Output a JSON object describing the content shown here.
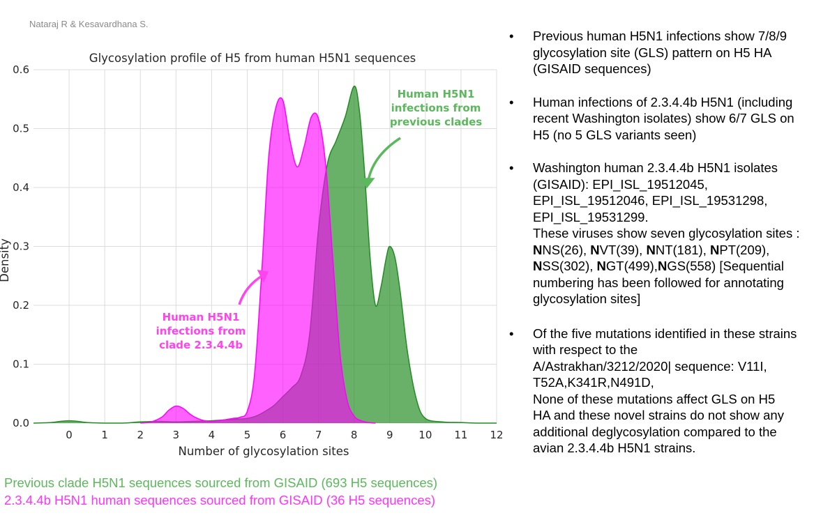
{
  "author": "Nataraj R & Kesavardhana S.",
  "chart_data": {
    "type": "area",
    "title": "Glycosylation profile of H5 from human H5N1 sequences",
    "xlabel": "Number of glycosylation sites",
    "ylabel": "Density",
    "xlim": [
      -1,
      12
    ],
    "ylim": [
      0,
      0.6
    ],
    "xticks": [
      "0",
      "1",
      "2",
      "3",
      "4",
      "5",
      "6",
      "7",
      "8",
      "9",
      "10",
      "11",
      "12"
    ],
    "yticks": [
      "0.0",
      "0.1",
      "0.2",
      "0.3",
      "0.4",
      "0.5",
      "0.6"
    ],
    "grid": true,
    "series": [
      {
        "color": "#228b22",
        "x": [
          -1.0,
          -0.5,
          -0.25,
          0,
          0.25,
          0.5,
          1,
          1.5,
          2,
          2.5,
          3,
          3.5,
          4,
          4.5,
          5,
          5.25,
          5.5,
          5.75,
          6,
          6.25,
          6.5,
          6.75,
          7,
          7.25,
          7.5,
          7.75,
          8,
          8.15,
          8.3,
          8.45,
          8.6,
          8.75,
          8.9,
          9,
          9.15,
          9.3,
          9.5,
          9.75,
          10,
          10.5,
          11,
          11.5,
          12
        ],
        "values": [
          0,
          0.001,
          0.003,
          0.004,
          0.003,
          0.001,
          0,
          0,
          0.002,
          0.003,
          0.002,
          0.003,
          0.004,
          0.006,
          0.008,
          0.012,
          0.02,
          0.03,
          0.045,
          0.06,
          0.08,
          0.15,
          0.33,
          0.44,
          0.48,
          0.52,
          0.572,
          0.53,
          0.42,
          0.28,
          0.2,
          0.23,
          0.28,
          0.3,
          0.28,
          0.22,
          0.12,
          0.04,
          0.008,
          0.002,
          0.001,
          0,
          0
        ]
      },
      {
        "color": "#ff00ff",
        "x": [
          2.0,
          2.3,
          2.6,
          2.8,
          3,
          3.2,
          3.4,
          3.6,
          3.8,
          4,
          4.2,
          4.4,
          4.6,
          4.8,
          5,
          5.2,
          5.4,
          5.6,
          5.8,
          6,
          6.2,
          6.4,
          6.6,
          6.8,
          7,
          7.2,
          7.4,
          7.6,
          7.8,
          8.0,
          8.2,
          8.4,
          8.6
        ],
        "values": [
          0,
          0.002,
          0.01,
          0.022,
          0.029,
          0.025,
          0.015,
          0.008,
          0.004,
          0.003,
          0.004,
          0.006,
          0.008,
          0.01,
          0.02,
          0.08,
          0.25,
          0.45,
          0.535,
          0.548,
          0.48,
          0.435,
          0.47,
          0.52,
          0.517,
          0.44,
          0.28,
          0.12,
          0.04,
          0.012,
          0.004,
          0.001,
          0
        ]
      }
    ],
    "annotations": [
      {
        "text": [
          "Human H5N1",
          "infections from",
          "previous clades"
        ],
        "color": "#5cb85c"
      },
      {
        "text": [
          "Human H5N1",
          "infections from",
          "clade 2.3.4.4b"
        ],
        "color": "#ff44ee"
      }
    ]
  },
  "bullets": [
    {
      "lines": [
        "Previous  human H5N1 infections show 7/8/9",
        "glycosylation site (GLS) pattern on H5 HA",
        "(GISAID sequences)"
      ]
    },
    {
      "lines": [
        "Human infections of 2.3.4.4b H5N1 (including",
        "recent Washington isolates) show 6/7 GLS on",
        "H5 (no 5 GLS variants seen)"
      ]
    },
    {
      "lines": [
        "Washington human 2.3.4.4b H5N1 isolates",
        "(GISAID): EPI_ISL_19512045,",
        "EPI_ISL_19512046, EPI_ISL_19531298,",
        "EPI_ISL_19531299.",
        "These viruses show seven glycosylation sites :"
      ],
      "sites_line1": [
        {
          "b": "N",
          "r": "NS(26), "
        },
        {
          "b": "N",
          "r": "VT(39), "
        },
        {
          "b": "N",
          "r": "NT(181), "
        },
        {
          "b": "N",
          "r": "PT(209),"
        }
      ],
      "sites_line2": [
        {
          "b": "N",
          "r": "SS(302), "
        },
        {
          "b": "N",
          "r": "GT(499),"
        },
        {
          "b": "N",
          "r": "GS(558) [Sequential"
        }
      ],
      "tail_lines": [
        "numbering has been followed for annotating",
        "glycosylation sites]"
      ]
    },
    {
      "lines": [
        "Of the five mutations identified in these strains",
        "with respect to the",
        "A/Astrakhan/3212/2020| sequence: V11I,",
        "T52A,K341R,N491D,",
        "None of these mutations affect GLS on H5",
        "HA and these novel strains do not show any",
        "additional deglycosylation compared to the",
        "avian 2.3.4.4b H5N1 strains."
      ]
    }
  ],
  "bullet_char": "•",
  "captions": [
    {
      "text": "Previous clade H5N1 sequences sourced from GISAID (693 H5 sequences)",
      "color": "#5cb85c"
    },
    {
      "text": "2.3.4.4b H5N1 human sequences sourced from GISAID (36 H5 sequences)",
      "color": "#ff33ff"
    }
  ]
}
